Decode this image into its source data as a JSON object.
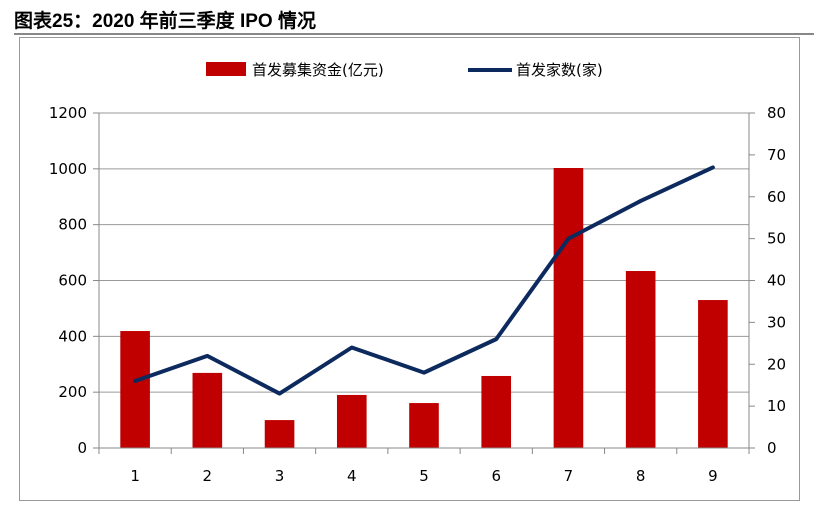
{
  "title": "图表25：2020 年前三季度 IPO 情况",
  "chart_data": {
    "type": "bar+line",
    "title": "",
    "categories": [
      "1",
      "2",
      "3",
      "4",
      "5",
      "6",
      "7",
      "8",
      "9"
    ],
    "series": [
      {
        "name": "首发募集资金(亿元)",
        "type": "bar",
        "axis": "left",
        "color": "#C00000",
        "values": [
          419,
          269,
          100,
          190,
          161,
          258,
          1003,
          634,
          530
        ]
      },
      {
        "name": "首发家数(家)",
        "type": "line",
        "axis": "right",
        "color": "#0D2A5E",
        "values": [
          16,
          22,
          13,
          24,
          18,
          26,
          50,
          59,
          67
        ]
      }
    ],
    "left_axis": {
      "ylim": [
        0,
        1200
      ],
      "ticks": [
        "0",
        "200",
        "400",
        "600",
        "800",
        "1000",
        "1200"
      ]
    },
    "right_axis": {
      "ylim": [
        0,
        80
      ],
      "ticks": [
        "0",
        "10",
        "20",
        "30",
        "40",
        "50",
        "60",
        "70",
        "80"
      ]
    },
    "grid": true,
    "legend": "top"
  }
}
